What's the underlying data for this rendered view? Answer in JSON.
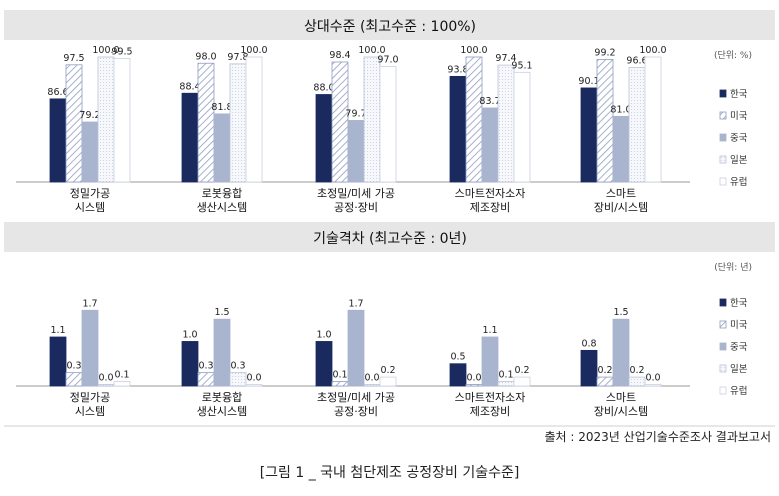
{
  "chart_data": [
    {
      "type": "bar",
      "title": "상대수준 (최고수준 : 100%)",
      "unit": "(단위: %)",
      "categories": [
        "정밀가공\n시스템",
        "로봇융합\n생산시스템",
        "초정밀/미세 가공\n공정·장비",
        "스마트전자소자\n제조장비",
        "스마트\n장비/시스템"
      ],
      "series": [
        {
          "name": "한국",
          "values": [
            86.6,
            88.4,
            88.0,
            93.8,
            90.1
          ]
        },
        {
          "name": "미국",
          "values": [
            97.5,
            98.0,
            98.4,
            100.0,
            99.2
          ]
        },
        {
          "name": "중국",
          "values": [
            79.2,
            81.8,
            79.7,
            83.7,
            81.0
          ]
        },
        {
          "name": "일본",
          "values": [
            100.0,
            97.8,
            100.0,
            97.4,
            96.6
          ]
        },
        {
          "name": "유럽",
          "values": [
            99.5,
            100.0,
            97.0,
            95.1,
            100.0
          ]
        }
      ],
      "ylim": [
        60,
        100
      ],
      "legend": "right"
    },
    {
      "type": "bar",
      "title": "기술격차 (최고수준 : 0년)",
      "unit": "(단위: 년)",
      "categories": [
        "정밀가공\n시스템",
        "로봇융합\n생산시스템",
        "초정밀/미세 가공\n공정·장비",
        "스마트전자소자\n제조장비",
        "스마트\n장비/시스템"
      ],
      "series": [
        {
          "name": "한국",
          "values": [
            1.1,
            1.0,
            1.0,
            0.5,
            0.8
          ]
        },
        {
          "name": "미국",
          "values": [
            0.3,
            0.3,
            0.1,
            0.0,
            0.2
          ]
        },
        {
          "name": "중국",
          "values": [
            1.7,
            1.5,
            1.7,
            1.1,
            1.5
          ]
        },
        {
          "name": "일본",
          "values": [
            0.0,
            0.3,
            0.0,
            0.1,
            0.2
          ]
        },
        {
          "name": "유럽",
          "values": [
            0.1,
            0.0,
            0.2,
            0.2,
            0.0
          ]
        }
      ],
      "ylim": [
        0,
        2.2
      ],
      "legend": "right"
    }
  ],
  "colors": {
    "한국": "#1b2a5e",
    "미국": "#ffffff",
    "중국": "#a9b4cf",
    "일본": "#ffffff",
    "유럽": "#ffffff",
    "header_band": "#e6e6e6",
    "stroke": "#8e9cbf"
  },
  "source": "출처 : 2023년 산업기술수준조사 결과보고서",
  "caption": "[그림 1 _ 국내 첨단제조 공정장비 기술수준]"
}
